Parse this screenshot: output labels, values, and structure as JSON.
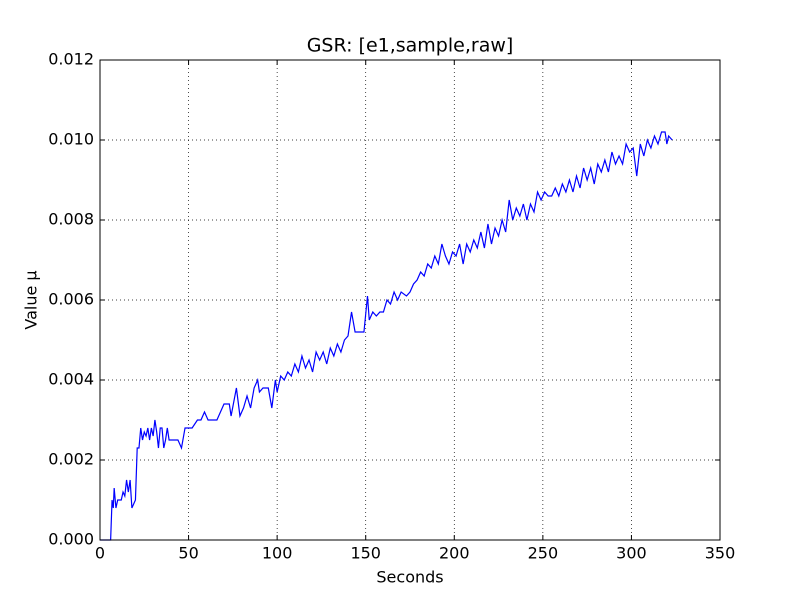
{
  "chart_data": {
    "type": "line",
    "title": "GSR: [e1,sample,raw]",
    "x_label": "Seconds",
    "y_label": "Value µ",
    "xlim": [
      0,
      350
    ],
    "xticks": [
      0,
      50,
      100,
      150,
      200,
      250,
      300,
      350
    ],
    "ylim": [
      0,
      0.012
    ],
    "yticks": [
      {
        "value": 0,
        "label": "0.000"
      },
      {
        "value": 0.002,
        "label": "0.002"
      },
      {
        "value": 0.004,
        "label": "0.004"
      },
      {
        "value": 0.006,
        "label": "0.006"
      },
      {
        "value": 0.008,
        "label": "0.008"
      },
      {
        "value": 0.01,
        "label": "0.010"
      },
      {
        "value": 0.012,
        "label": "0.012"
      }
    ],
    "grid": true,
    "x": [
      0,
      6,
      6.8,
      7.5,
      8,
      9,
      10,
      12,
      13,
      14,
      15,
      16,
      17,
      18,
      19,
      20,
      21,
      22,
      23,
      24,
      25,
      26,
      27,
      28,
      29,
      30,
      31,
      32,
      33,
      34,
      35,
      36,
      37,
      38,
      39,
      41,
      44,
      46,
      48,
      52,
      55,
      57,
      59,
      61,
      66,
      68,
      70,
      73,
      74,
      77,
      79,
      81,
      83,
      85,
      87,
      89,
      90,
      92,
      95,
      97,
      99,
      100,
      102,
      104,
      106,
      108,
      110,
      112,
      114,
      116,
      118,
      120,
      122,
      124,
      126,
      128,
      130,
      132,
      134,
      136,
      138,
      140,
      142,
      144,
      146,
      149,
      151,
      152,
      154,
      156,
      158,
      160,
      162,
      164,
      166,
      168,
      170,
      173,
      175,
      177,
      179,
      181,
      183,
      185,
      187,
      189,
      191,
      193,
      195,
      197,
      199,
      201,
      203,
      205,
      207,
      209,
      211,
      213,
      215,
      217,
      219,
      221,
      223,
      225,
      227,
      229,
      231,
      233,
      235,
      237,
      239,
      241,
      243,
      245,
      247,
      249,
      251,
      253,
      255,
      257,
      259,
      261,
      263,
      265,
      267,
      269,
      271,
      273,
      275,
      277,
      279,
      281,
      283,
      285,
      287,
      289,
      291,
      293,
      295,
      297,
      299,
      301,
      303,
      305,
      307,
      309,
      311,
      313,
      315,
      317,
      319,
      320,
      321,
      323
    ],
    "series": [
      {
        "color": "#0000ff",
        "values": [
          0,
          0,
          0.001,
          0.0008,
          0.0013,
          0.0008,
          0.001,
          0.001,
          0.0012,
          0.0011,
          0.0015,
          0.0012,
          0.0015,
          0.0008,
          0.0009,
          0.001,
          0.0023,
          0.0023,
          0.0028,
          0.0025,
          0.0027,
          0.0026,
          0.0028,
          0.0025,
          0.0028,
          0.0026,
          0.003,
          0.0027,
          0.0023,
          0.0028,
          0.0028,
          0.0023,
          0.0025,
          0.0028,
          0.0025,
          0.0025,
          0.0025,
          0.0023,
          0.0028,
          0.0028,
          0.003,
          0.003,
          0.0032,
          0.003,
          0.003,
          0.0032,
          0.0034,
          0.0034,
          0.0031,
          0.0038,
          0.0031,
          0.0033,
          0.0036,
          0.0033,
          0.0038,
          0.004,
          0.0037,
          0.0038,
          0.0038,
          0.0033,
          0.004,
          0.0037,
          0.0041,
          0.004,
          0.0042,
          0.0041,
          0.0044,
          0.0042,
          0.0046,
          0.0043,
          0.0045,
          0.0042,
          0.0047,
          0.0045,
          0.0047,
          0.0044,
          0.0048,
          0.0046,
          0.0049,
          0.0047,
          0.005,
          0.0051,
          0.0057,
          0.0052,
          0.0052,
          0.0052,
          0.0061,
          0.0055,
          0.0057,
          0.0056,
          0.0057,
          0.0057,
          0.006,
          0.0059,
          0.0062,
          0.006,
          0.0062,
          0.0061,
          0.0062,
          0.0064,
          0.0065,
          0.0067,
          0.0066,
          0.0069,
          0.0068,
          0.0071,
          0.0069,
          0.0074,
          0.0071,
          0.0069,
          0.0072,
          0.0071,
          0.0074,
          0.0069,
          0.0074,
          0.0072,
          0.0075,
          0.0073,
          0.0077,
          0.0073,
          0.0079,
          0.0074,
          0.0078,
          0.0076,
          0.008,
          0.0077,
          0.0085,
          0.008,
          0.0083,
          0.0081,
          0.0084,
          0.008,
          0.0084,
          0.0082,
          0.0087,
          0.0085,
          0.0087,
          0.0086,
          0.0086,
          0.0088,
          0.0086,
          0.0089,
          0.0087,
          0.009,
          0.0087,
          0.0091,
          0.0088,
          0.0093,
          0.009,
          0.0093,
          0.0089,
          0.0094,
          0.0092,
          0.0095,
          0.0092,
          0.0097,
          0.0094,
          0.0096,
          0.0094,
          0.0099,
          0.0097,
          0.0098,
          0.0091,
          0.0099,
          0.0096,
          0.01,
          0.0098,
          0.0101,
          0.0099,
          0.0102,
          0.0102,
          0.0099,
          0.0101,
          0.01
        ]
      }
    ]
  }
}
